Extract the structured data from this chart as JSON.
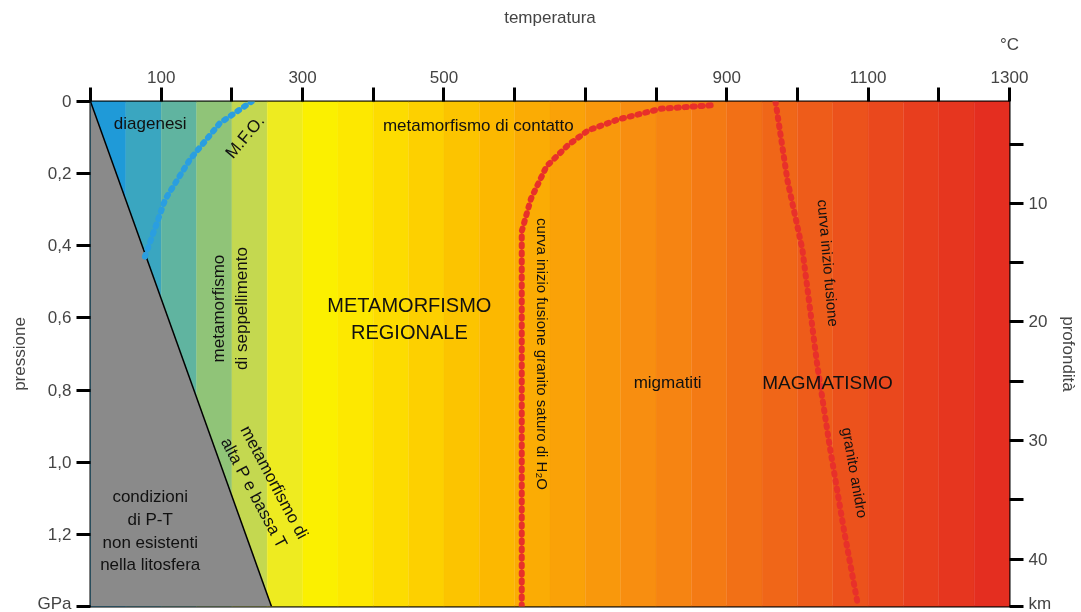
{
  "chart_data": {
    "type": "line",
    "xlabel": "temperatura",
    "ylabel": "pressione",
    "y2label": "profondità",
    "xlim": [
      0,
      1300
    ],
    "xticks": [
      {
        "value": 0,
        "label": null
      },
      100,
      {
        "value": 200,
        "label": null
      },
      300,
      {
        "value": 400,
        "label": null
      },
      500,
      {
        "value": 600,
        "label": null
      },
      {
        "value": 700,
        "label": null
      },
      {
        "value": 800,
        "label": null
      },
      900,
      {
        "value": 1000,
        "label": null
      },
      1100,
      {
        "value": 1200,
        "label": null
      },
      1300
    ],
    "ylim": [
      1.4,
      0
    ],
    "yticks": [
      {
        "value": 0,
        "label": "0"
      },
      {
        "value": 0.2,
        "label": "0,2"
      },
      {
        "value": 0.4,
        "label": "0,4"
      },
      {
        "value": 0.6,
        "label": "0,6"
      },
      {
        "value": 0.8,
        "label": "0,8"
      },
      {
        "value": 1.0,
        "label": "1,0"
      },
      {
        "value": 1.2,
        "label": "1,2"
      },
      {
        "value": 1.4,
        "label": "GPa"
      }
    ],
    "y2lim": [
      44,
      1.4
    ],
    "y2ticks": [
      {
        "value": 5,
        "label": null
      },
      10,
      {
        "value": 15,
        "label": null
      },
      20,
      {
        "value": 25,
        "label": null
      },
      30,
      {
        "value": 35,
        "label": null
      },
      40,
      {
        "value": 44,
        "label": "km"
      }
    ],
    "grid": false,
    "marker": "none",
    "series": [
      {
        "type": "area",
        "color": "#8a8a8a",
        "x": [
          0,
          256
        ],
        "values": [
          0,
          1.4
        ]
      },
      {
        "color": "#2a9ee0",
        "line_style": "dotted",
        "x": [
          77,
          106,
          141,
          183,
          228
        ],
        "values": [
          0.43,
          0.27,
          0.16,
          0.06,
          0.0
        ]
      },
      {
        "color": "#e8302a",
        "line_style": "dotted",
        "x": [
          610,
          610,
          623,
          645,
          676,
          704,
          746,
          807,
          883
        ],
        "values": [
          1.4,
          0.36,
          0.27,
          0.18,
          0.12,
          0.08,
          0.05,
          0.02,
          0.01
        ]
      },
      {
        "color": "#e8302a",
        "line_style": "dotted",
        "x": [
          969,
          986,
          1007,
          1028,
          1046,
          1066,
          1085
        ],
        "values": [
          0,
          0.22,
          0.41,
          0.73,
          0.96,
          1.19,
          1.39
        ]
      }
    ],
    "bands": [
      {
        "axis": "x",
        "from": 0,
        "to": 50,
        "color": "#1f9ad8"
      },
      {
        "axis": "x",
        "from": 50,
        "to": 100,
        "color": "#3aa6c0"
      },
      {
        "axis": "x",
        "from": 100,
        "to": 150,
        "color": "#60b4a0"
      },
      {
        "axis": "x",
        "from": 150,
        "to": 200,
        "color": "#90c478"
      },
      {
        "axis": "x",
        "from": 200,
        "to": 250,
        "color": "#c4d850"
      },
      {
        "axis": "x",
        "from": 250,
        "to": 300,
        "color": "#eeeb20"
      },
      {
        "axis": "x",
        "from": 300,
        "to": 350,
        "color": "#fbf000"
      },
      {
        "axis": "x",
        "from": 350,
        "to": 400,
        "color": "#fde800"
      },
      {
        "axis": "x",
        "from": 400,
        "to": 450,
        "color": "#fddc00"
      },
      {
        "axis": "x",
        "from": 450,
        "to": 500,
        "color": "#fdd000"
      },
      {
        "axis": "x",
        "from": 500,
        "to": 550,
        "color": "#fcc400"
      },
      {
        "axis": "x",
        "from": 550,
        "to": 600,
        "color": "#fcb800"
      },
      {
        "axis": "x",
        "from": 600,
        "to": 650,
        "color": "#fbac04"
      },
      {
        "axis": "x",
        "from": 650,
        "to": 700,
        "color": "#faa208"
      },
      {
        "axis": "x",
        "from": 700,
        "to": 750,
        "color": "#f9980c"
      },
      {
        "axis": "x",
        "from": 750,
        "to": 800,
        "color": "#f88e10"
      },
      {
        "axis": "x",
        "from": 800,
        "to": 850,
        "color": "#f68412"
      },
      {
        "axis": "x",
        "from": 850,
        "to": 900,
        "color": "#f47a14"
      },
      {
        "axis": "x",
        "from": 900,
        "to": 950,
        "color": "#f27016"
      },
      {
        "axis": "x",
        "from": 950,
        "to": 1000,
        "color": "#f06618"
      },
      {
        "axis": "x",
        "from": 1000,
        "to": 1050,
        "color": "#ee5c1a"
      },
      {
        "axis": "x",
        "from": 1050,
        "to": 1100,
        "color": "#ec521c"
      },
      {
        "axis": "x",
        "from": 1100,
        "to": 1150,
        "color": "#ea481d"
      },
      {
        "axis": "x",
        "from": 1150,
        "to": 1200,
        "color": "#e83e1e"
      },
      {
        "axis": "x",
        "from": 1200,
        "to": 1250,
        "color": "#e6361f"
      },
      {
        "axis": "x",
        "from": 1250,
        "to": 1300,
        "color": "#e42e20"
      }
    ],
    "annotations": [
      "°C",
      "diagenesi",
      "M.F.O.",
      "metamorfismo di contatto",
      "metamorfismo\ndi seppellimento",
      "METAMORFISMO\nREGIONALE",
      "curva inizio fusione granito saturo di H₂O",
      "migmatiti",
      "MAGMATISMO",
      "curva inizio fusione",
      "granito anidro",
      "metamorfismo di\nalta P e bassa T",
      "condizioni\ndi P-T\nnon esistenti\nnella litosfera"
    ]
  }
}
